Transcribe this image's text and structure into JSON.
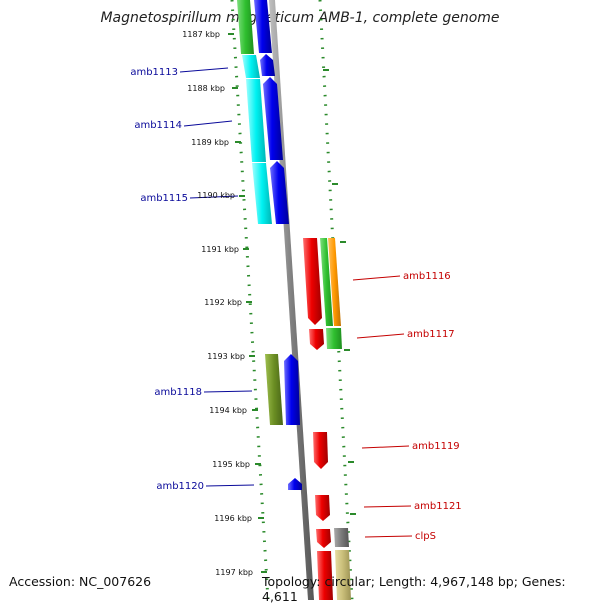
{
  "title": "Magnetospirillum magneticum AMB-1, complete genome",
  "footer": {
    "accession": "Accession: NC_007626",
    "stats": "Topology: circular; Length: 4,967,148 bp; Genes: 4,611"
  },
  "ticks": [
    "1187 kbp",
    "1188 kbp",
    "1189 kbp",
    "1190 kbp",
    "1191 kbp",
    "1192 kbp",
    "1193 kbp",
    "1194 kbp",
    "1195 kbp",
    "1196 kbp",
    "1197 kbp"
  ],
  "left_genes": [
    "amb1113",
    "amb1114",
    "amb1115",
    "amb1118",
    "amb1120"
  ],
  "right_genes": [
    "amb1116",
    "amb1117",
    "amb1119",
    "amb1121",
    "clpS"
  ],
  "colors": {
    "forward_strand": "#0000ee",
    "reverse_strand": "#ee0000",
    "cog_cyan": "#00ffff",
    "cog_green": "#33cc33",
    "cog_olive": "#6b8e23",
    "cog_orange": "#ff9900",
    "cog_gray": "#808080",
    "cog_khaki": "#c8bd78",
    "backbone": "#808080",
    "dots": "#2b8a2b"
  }
}
